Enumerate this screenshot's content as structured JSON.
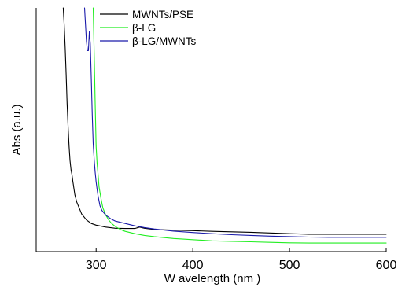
{
  "chart_data": {
    "type": "line",
    "title": "",
    "xlabel": "W avelength (nm )",
    "ylabel": "Abs (a.u.)",
    "xlim": [
      238,
      600
    ],
    "ylim": [
      0,
      1
    ],
    "x_ticks": [
      300,
      400,
      500,
      600
    ],
    "y_ticks": [],
    "grid": false,
    "legend_position": "top-center",
    "series": [
      {
        "name": "MWNTs/PSE",
        "color": "#000000",
        "x": [
          266,
          267,
          268,
          269,
          270,
          271,
          272,
          273,
          274,
          275,
          276,
          278,
          280,
          285,
          290,
          295,
          300,
          310,
          320,
          330,
          340,
          345,
          350,
          360,
          380,
          400,
          420,
          440,
          460,
          480,
          500,
          520,
          540,
          560,
          580,
          600
        ],
        "y": [
          1.0,
          0.93,
          0.83,
          0.72,
          0.6,
          0.5,
          0.42,
          0.36,
          0.32,
          0.3,
          0.27,
          0.215,
          0.185,
          0.135,
          0.11,
          0.095,
          0.088,
          0.08,
          0.075,
          0.074,
          0.074,
          0.08,
          0.075,
          0.07,
          0.067,
          0.065,
          0.062,
          0.06,
          0.058,
          0.055,
          0.052,
          0.05,
          0.05,
          0.05,
          0.05,
          0.05
        ]
      },
      {
        "name": "β-LG",
        "color": "#22ee22",
        "x": [
          297,
          298,
          299,
          300,
          301,
          302,
          303,
          305,
          307,
          310,
          313,
          316,
          320,
          325,
          330,
          340,
          350,
          360,
          380,
          400,
          420,
          440,
          460,
          480,
          500,
          520,
          540,
          560,
          580,
          600
        ],
        "y": [
          1.0,
          0.8,
          0.6,
          0.42,
          0.35,
          0.3,
          0.25,
          0.2,
          0.16,
          0.13,
          0.11,
          0.095,
          0.082,
          0.07,
          0.062,
          0.052,
          0.045,
          0.04,
          0.032,
          0.027,
          0.022,
          0.02,
          0.018,
          0.016,
          0.014,
          0.013,
          0.013,
          0.013,
          0.013,
          0.013
        ]
      },
      {
        "name": "β-LG/MWNTs",
        "color": "#1a1aaa",
        "x": [
          288,
          289,
          290,
          291,
          292,
          293,
          294,
          295,
          296,
          297,
          298,
          299,
          300,
          301,
          302,
          304,
          306,
          310,
          315,
          320,
          330,
          340,
          350,
          360,
          380,
          400,
          420,
          440,
          460,
          480,
          500,
          520,
          540,
          560,
          580,
          600
        ],
        "y": [
          1.0,
          0.93,
          0.86,
          0.82,
          0.82,
          0.9,
          0.85,
          0.7,
          0.55,
          0.43,
          0.36,
          0.31,
          0.27,
          0.24,
          0.21,
          0.17,
          0.15,
          0.13,
          0.115,
          0.105,
          0.095,
          0.085,
          0.078,
          0.072,
          0.063,
          0.057,
          0.052,
          0.048,
          0.045,
          0.042,
          0.04,
          0.038,
          0.037,
          0.037,
          0.037,
          0.037
        ]
      }
    ]
  }
}
